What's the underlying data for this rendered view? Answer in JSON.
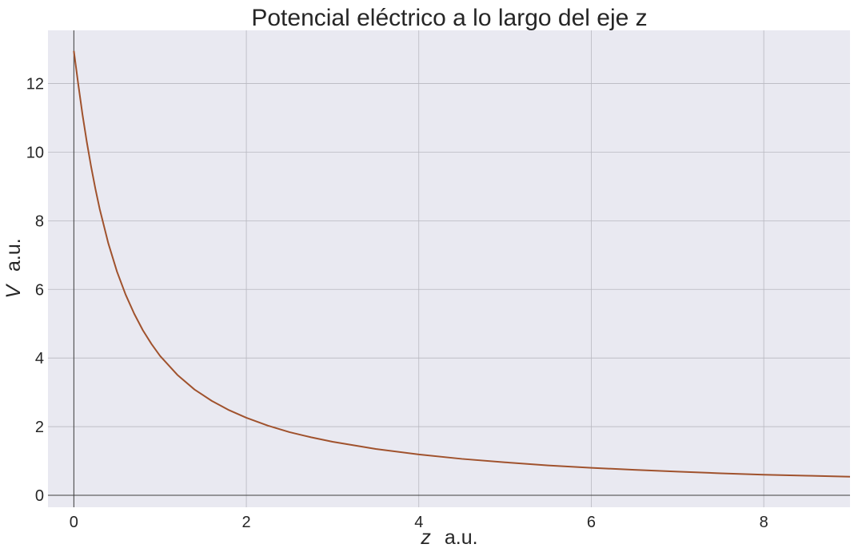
{
  "chart_data": {
    "type": "line",
    "title": "Potencial eléctrico a lo largo del eje z",
    "xlabel": {
      "symbol": "z",
      "unit": "a.u."
    },
    "ylabel": {
      "symbol": "V",
      "unit": "a.u."
    },
    "xlim": [
      -0.3,
      9.0
    ],
    "ylim": [
      -0.35,
      13.55
    ],
    "x_ticks": [
      0,
      2,
      4,
      6,
      8
    ],
    "x_tick_labels": [
      "0",
      "2",
      "4",
      "6",
      "8"
    ],
    "y_ticks": [
      0,
      2,
      4,
      6,
      8,
      10,
      12
    ],
    "y_tick_labels": [
      "0",
      "2",
      "4",
      "6",
      "8",
      "10",
      "12"
    ],
    "grid": true,
    "background": "#e9e9f1",
    "gridColor": "#b8b8c0",
    "axisLineColor": "#404040",
    "series": [
      {
        "color": "#a0522d",
        "x": [
          0,
          0.05,
          0.1,
          0.15,
          0.2,
          0.25,
          0.3,
          0.4,
          0.5,
          0.6,
          0.7,
          0.8,
          0.9,
          1.0,
          1.2,
          1.4,
          1.6,
          1.8,
          2.0,
          2.25,
          2.5,
          2.75,
          3.0,
          3.5,
          4.0,
          4.5,
          5.0,
          5.5,
          6.0,
          6.5,
          7.0,
          7.5,
          8.0,
          8.5,
          9.0
        ],
        "y": [
          12.95,
          12.0,
          11.1,
          10.3,
          9.58,
          8.93,
          8.34,
          7.34,
          6.52,
          5.85,
          5.29,
          4.81,
          4.41,
          4.06,
          3.51,
          3.08,
          2.75,
          2.48,
          2.26,
          2.03,
          1.84,
          1.69,
          1.56,
          1.35,
          1.19,
          1.06,
          0.96,
          0.87,
          0.8,
          0.74,
          0.69,
          0.64,
          0.6,
          0.57,
          0.54
        ]
      }
    ]
  }
}
